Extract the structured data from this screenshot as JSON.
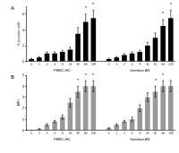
{
  "chart_data": [
    {
      "type": "bar",
      "label": "A",
      "y_label": "% positive cells",
      "categories": [
        "0",
        "1",
        "2",
        "4",
        "8",
        "16",
        "32",
        "64",
        "128",
        null,
        "0",
        "1",
        "2",
        "4",
        "8",
        "16",
        "32",
        "64",
        "128"
      ],
      "values": [
        0.3,
        0.5,
        1.0,
        1.0,
        1.2,
        1.5,
        3.5,
        5.0,
        5.5,
        null,
        0.3,
        0.5,
        0.8,
        1.0,
        1.2,
        2.0,
        3.0,
        4.5,
        5.5
      ],
      "errors": [
        0.1,
        0.1,
        0.2,
        0.2,
        0.2,
        0.3,
        0.8,
        1.0,
        1.0,
        null,
        0.1,
        0.1,
        0.2,
        0.2,
        0.2,
        0.4,
        0.6,
        0.8,
        1.0
      ],
      "color": "#000000",
      "ylim": [
        0,
        7
      ],
      "yticks": [
        0,
        2,
        4,
        6
      ],
      "grid": false,
      "annotations": [
        {
          "text": "PBMC-HC",
          "x": 4
        },
        {
          "text": "Gambian AS",
          "x": 14
        }
      ],
      "stars": [
        {
          "text": "*",
          "x": 7,
          "y": 6.2
        },
        {
          "text": "*",
          "x": 8,
          "y": 6.7
        },
        {
          "text": "*",
          "x": 17,
          "y": 5.5
        },
        {
          "text": "*",
          "x": 18,
          "y": 6.7
        }
      ]
    },
    {
      "type": "bar",
      "label": "B",
      "y_label": "MFI",
      "categories": [
        "0",
        "1",
        "2",
        "4",
        "8",
        "16",
        "32",
        "64",
        "128",
        null,
        "0",
        "1",
        "2",
        "4",
        "8",
        "16",
        "32",
        "64",
        "128"
      ],
      "values": [
        0.0,
        0.1,
        0.5,
        0.8,
        1.2,
        2.5,
        3.5,
        4.0,
        4.0,
        null,
        0.2,
        0.5,
        0.8,
        1.0,
        2.0,
        3.0,
        3.5,
        4.0,
        4.0
      ],
      "errors": [
        0.0,
        0.05,
        0.1,
        0.1,
        0.2,
        0.4,
        0.5,
        0.5,
        0.5,
        null,
        0.05,
        0.1,
        0.1,
        0.2,
        0.3,
        0.4,
        0.5,
        0.5,
        0.5
      ],
      "color": "#999999",
      "ylim": [
        0,
        5
      ],
      "yticks": [
        0,
        1,
        2,
        3,
        4,
        5
      ],
      "grid": false,
      "annotations": [
        {
          "text": "PBMC-HC",
          "x": 4
        },
        {
          "text": "Gambian AS",
          "x": 14
        }
      ],
      "stars": [
        {
          "text": "*",
          "x": 6,
          "y": 4.1
        },
        {
          "text": "*",
          "x": 7,
          "y": 4.6
        },
        {
          "text": "*",
          "x": 8,
          "y": 4.6
        },
        {
          "text": "*",
          "x": 16,
          "y": 4.1
        },
        {
          "text": "*",
          "x": 17,
          "y": 4.6
        }
      ]
    }
  ]
}
